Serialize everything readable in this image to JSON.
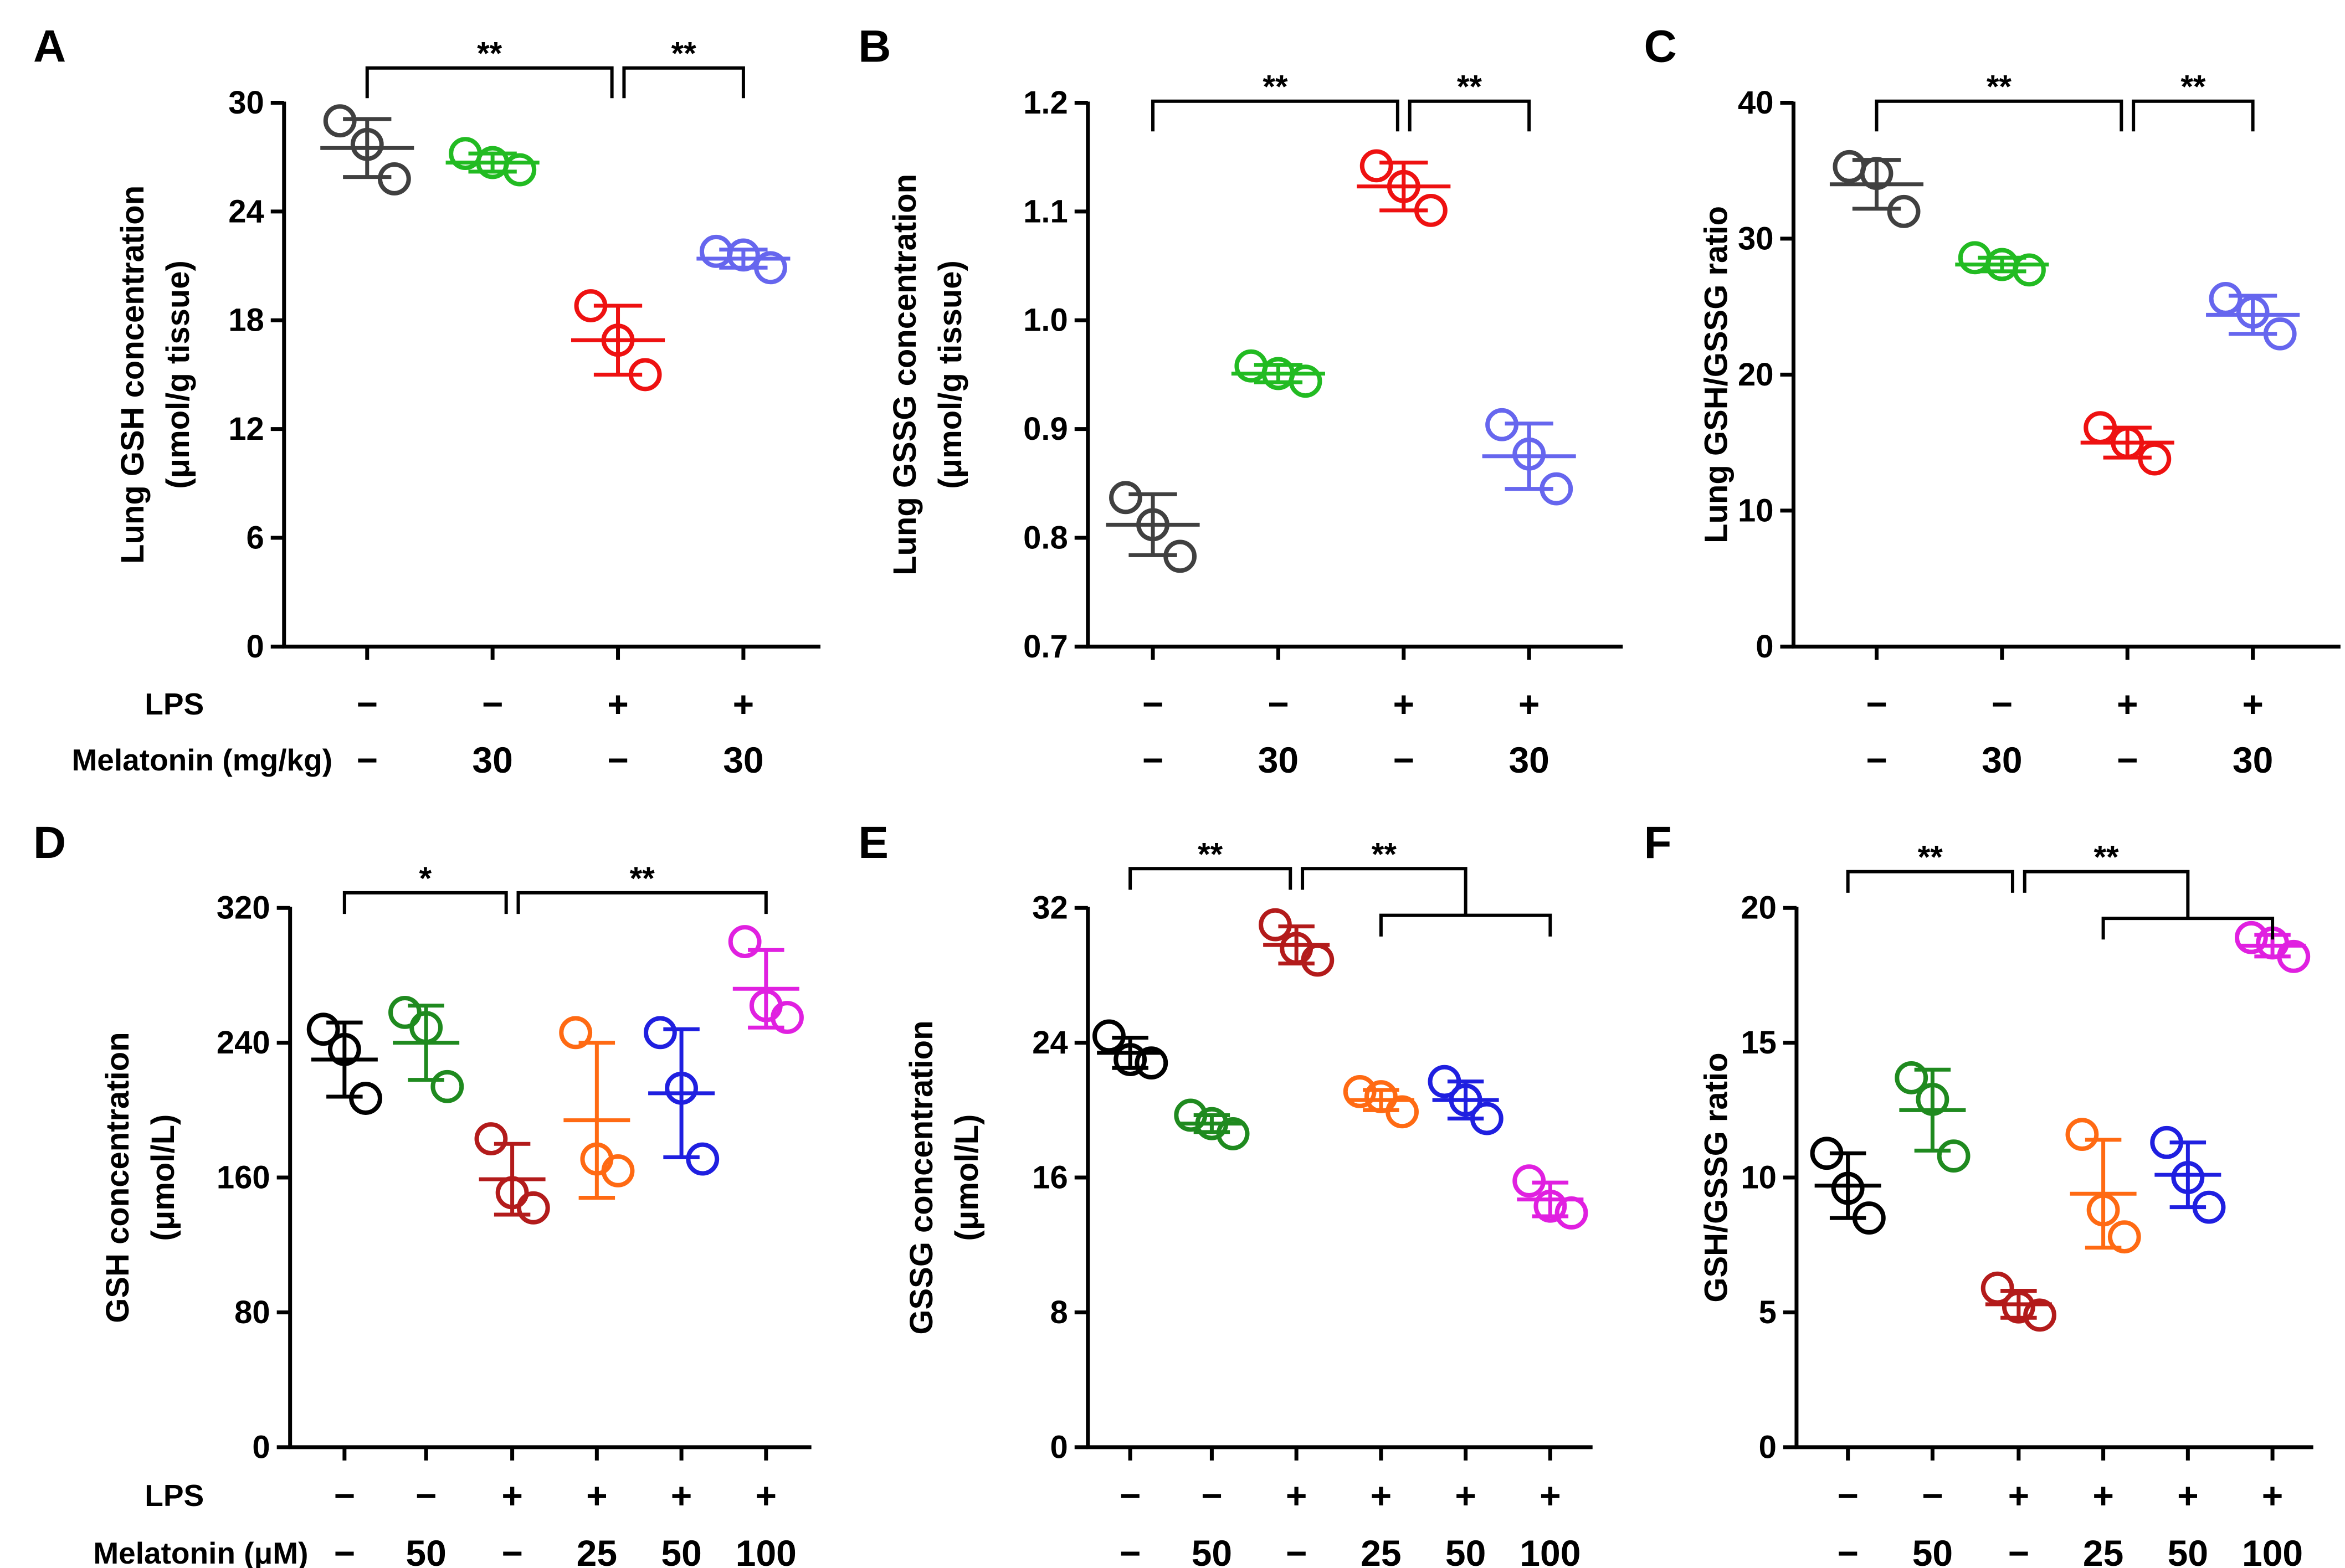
{
  "chart_data": [
    {
      "type": "scatter",
      "panel": "A",
      "ylabel": [
        "Lung GSH concentration",
        "(μmol/g tissue)"
      ],
      "ylim": [
        0,
        30
      ],
      "yticks": [
        "0",
        "6",
        "12",
        "18",
        "24",
        "30"
      ],
      "rows": [
        {
          "label": "LPS",
          "values": [
            "−",
            "−",
            "+",
            "+"
          ]
        },
        {
          "label": "Melatonin (mg/kg)",
          "values": [
            "−",
            "30",
            "−",
            "30"
          ]
        }
      ],
      "series": [
        {
          "color": "#404040",
          "points": [
            29.0,
            27.7,
            25.8
          ],
          "mean": 27.5,
          "sd": 1.6
        },
        {
          "color": "#22bb22",
          "points": [
            27.2,
            26.7,
            26.3
          ],
          "mean": 26.7,
          "sd": 0.5
        },
        {
          "color": "#ee1111",
          "points": [
            18.8,
            16.9,
            15.0
          ],
          "mean": 16.9,
          "sd": 1.9
        },
        {
          "color": "#6666ee",
          "points": [
            21.8,
            21.6,
            20.9
          ],
          "mean": 21.4,
          "sd": 0.5
        }
      ],
      "brackets": [
        {
          "from": 0,
          "to": 2,
          "label": "**"
        },
        {
          "from": 2,
          "to": 3,
          "label": "**"
        }
      ]
    },
    {
      "type": "scatter",
      "panel": "B",
      "ylabel": [
        "Lung GSSG concentration",
        "(μmol/g tissue)"
      ],
      "ylim": [
        0.7,
        1.2
      ],
      "yticks": [
        "0.7",
        "0.8",
        "0.9",
        "1.0",
        "1.1",
        "1.2"
      ],
      "rows": [
        {
          "label": "",
          "values": [
            "−",
            "−",
            "+",
            "+"
          ]
        },
        {
          "label": "",
          "values": [
            "−",
            "30",
            "−",
            "30"
          ]
        }
      ],
      "series": [
        {
          "color": "#404040",
          "points": [
            0.837,
            0.812,
            0.783
          ],
          "mean": 0.812,
          "sd": 0.028
        },
        {
          "color": "#22bb22",
          "points": [
            0.958,
            0.951,
            0.944
          ],
          "mean": 0.951,
          "sd": 0.008
        },
        {
          "color": "#ee1111",
          "points": [
            1.142,
            1.123,
            1.101
          ],
          "mean": 1.123,
          "sd": 0.022
        },
        {
          "color": "#6666ee",
          "points": [
            0.904,
            0.877,
            0.845
          ],
          "mean": 0.875,
          "sd": 0.03
        }
      ],
      "brackets": [
        {
          "from": 0,
          "to": 2,
          "label": "**"
        },
        {
          "from": 2,
          "to": 3,
          "label": "**"
        }
      ]
    },
    {
      "type": "scatter",
      "panel": "C",
      "ylabel": [
        "Lung GSH/GSSG ratio"
      ],
      "ylim": [
        0,
        40
      ],
      "yticks": [
        "0",
        "10",
        "20",
        "30",
        "40"
      ],
      "rows": [
        {
          "label": "",
          "values": [
            "−",
            "−",
            "+",
            "+"
          ]
        },
        {
          "label": "",
          "values": [
            "−",
            "30",
            "−",
            "30"
          ]
        }
      ],
      "series": [
        {
          "color": "#404040",
          "points": [
            35.3,
            34.8,
            32.0
          ],
          "mean": 34.0,
          "sd": 1.8
        },
        {
          "color": "#22bb22",
          "points": [
            28.6,
            28.1,
            27.7
          ],
          "mean": 28.1,
          "sd": 0.5
        },
        {
          "color": "#ee1111",
          "points": [
            16.1,
            15.0,
            13.8
          ],
          "mean": 15.0,
          "sd": 1.1
        },
        {
          "color": "#6666ee",
          "points": [
            25.6,
            24.6,
            23.0
          ],
          "mean": 24.4,
          "sd": 1.4
        }
      ],
      "brackets": [
        {
          "from": 0,
          "to": 2,
          "label": "**"
        },
        {
          "from": 2,
          "to": 3,
          "label": "**"
        }
      ]
    },
    {
      "type": "scatter",
      "panel": "D",
      "ylabel": [
        "GSH concentration",
        "(μmol/L)"
      ],
      "ylim": [
        0,
        320
      ],
      "yticks": [
        "0",
        "80",
        "160",
        "240",
        "320"
      ],
      "rows": [
        {
          "label": "LPS",
          "values": [
            "−",
            "−",
            "+",
            "+",
            "+",
            "+"
          ]
        },
        {
          "label": "Melatonin (μM)",
          "values": [
            "−",
            "50",
            "−",
            "25",
            "50",
            "100"
          ]
        }
      ],
      "series": [
        {
          "color": "#000000",
          "points": [
            248,
            236,
            207
          ],
          "mean": 230,
          "sd": 22
        },
        {
          "color": "#1f8a1f",
          "points": [
            258,
            249,
            214
          ],
          "mean": 240,
          "sd": 22
        },
        {
          "color": "#b31b1b",
          "points": [
            183,
            151,
            142
          ],
          "mean": 159,
          "sd": 21
        },
        {
          "color": "#ff6a13",
          "points": [
            246,
            171,
            164
          ],
          "mean": 194,
          "sd": 46
        },
        {
          "color": "#1f1fe0",
          "points": [
            246,
            213,
            171
          ],
          "mean": 210,
          "sd": 38
        },
        {
          "color": "#e020e0",
          "points": [
            300,
            262,
            255
          ],
          "mean": 272,
          "sd": 23
        }
      ],
      "brackets": [
        {
          "from": 0,
          "to": 2,
          "label": "*"
        },
        {
          "from": 2,
          "to": 5,
          "label": "**"
        }
      ]
    },
    {
      "type": "scatter",
      "panel": "E",
      "ylabel": [
        "GSSG concentration",
        "(μmol/L)"
      ],
      "ylim": [
        0,
        32
      ],
      "yticks": [
        "0",
        "8",
        "16",
        "24",
        "32"
      ],
      "rows": [
        {
          "label": "",
          "values": [
            "−",
            "−",
            "+",
            "+",
            "+",
            "+"
          ]
        },
        {
          "label": "",
          "values": [
            "−",
            "50",
            "−",
            "25",
            "50",
            "100"
          ]
        }
      ],
      "series": [
        {
          "color": "#000000",
          "points": [
            24.4,
            23.0,
            22.8
          ],
          "mean": 23.4,
          "sd": 0.9
        },
        {
          "color": "#1f8a1f",
          "points": [
            19.7,
            19.2,
            18.6
          ],
          "mean": 19.2,
          "sd": 0.5
        },
        {
          "color": "#b31b1b",
          "points": [
            31.0,
            29.6,
            28.9
          ],
          "mean": 29.8,
          "sd": 1.1
        },
        {
          "color": "#ff6a13",
          "points": [
            21.1,
            20.8,
            19.9
          ],
          "mean": 20.6,
          "sd": 0.6
        },
        {
          "color": "#1f1fe0",
          "points": [
            21.7,
            20.6,
            19.5
          ],
          "mean": 20.6,
          "sd": 1.1
        },
        {
          "color": "#e020e0",
          "points": [
            15.8,
            14.3,
            13.9
          ],
          "mean": 14.7,
          "sd": 1.0
        }
      ],
      "brackets": [
        {
          "from": 0,
          "to": 2,
          "label": "**"
        },
        {
          "from": 2,
          "to": 5,
          "label": "**"
        }
      ]
    },
    {
      "type": "scatter",
      "panel": "F",
      "ylabel": [
        "GSH/GSSG ratio"
      ],
      "ylim": [
        0,
        20
      ],
      "yticks": [
        "0",
        "5",
        "10",
        "15",
        "20"
      ],
      "rows": [
        {
          "label": "",
          "values": [
            "−",
            "−",
            "+",
            "+",
            "+",
            "+"
          ]
        },
        {
          "label": "",
          "values": [
            "−",
            "50",
            "−",
            "25",
            "50",
            "100"
          ]
        }
      ],
      "series": [
        {
          "color": "#000000",
          "points": [
            10.9,
            9.6,
            8.5
          ],
          "mean": 9.7,
          "sd": 1.2
        },
        {
          "color": "#1f8a1f",
          "points": [
            13.7,
            12.9,
            10.8
          ],
          "mean": 12.5,
          "sd": 1.5
        },
        {
          "color": "#b31b1b",
          "points": [
            5.9,
            5.2,
            4.9
          ],
          "mean": 5.3,
          "sd": 0.5
        },
        {
          "color": "#ff6a13",
          "points": [
            11.6,
            8.8,
            7.8
          ],
          "mean": 9.4,
          "sd": 2.0
        },
        {
          "color": "#1f1fe0",
          "points": [
            11.3,
            10.0,
            8.9
          ],
          "mean": 10.1,
          "sd": 1.2
        },
        {
          "color": "#e020e0",
          "points": [
            18.9,
            18.7,
            18.2
          ],
          "mean": 18.6,
          "sd": 0.4
        }
      ],
      "brackets": [
        {
          "from": 0,
          "to": 2,
          "label": "**"
        },
        {
          "from": 2,
          "to": 5,
          "label": "**"
        }
      ]
    }
  ]
}
